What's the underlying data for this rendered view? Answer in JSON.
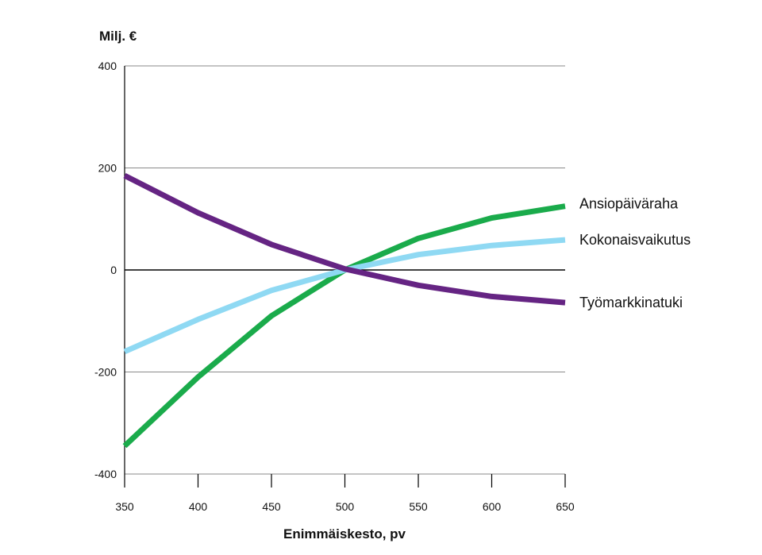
{
  "chart_data": {
    "type": "line",
    "ylabel": "Milj. €",
    "xlabel": "Enimmäiskesto, pv",
    "x": [
      350,
      400,
      450,
      500,
      550,
      600,
      650
    ],
    "xlim": [
      350,
      650
    ],
    "ylim": [
      -400,
      400
    ],
    "yticks": [
      400,
      200,
      0,
      -200,
      -400
    ],
    "ytick_labels": [
      "400",
      "200",
      "0",
      "-200",
      "-400"
    ],
    "xtick_labels": [
      "350",
      "400",
      "450",
      "500",
      "550",
      "600",
      "650"
    ],
    "grid": true,
    "legend": "right (inline labels at line ends)",
    "series": [
      {
        "name": "Ansiopäiväraha",
        "color": "#1aab4b",
        "values": [
          -345,
          -210,
          -90,
          0,
          62,
          102,
          125
        ]
      },
      {
        "name": "Kokonaisvaikutus",
        "color": "#8fd9f3",
        "values": [
          -160,
          -97,
          -40,
          0,
          30,
          48,
          59
        ]
      },
      {
        "name": "Työmarkkinatuki",
        "color": "#652483",
        "values": [
          185,
          112,
          50,
          2,
          -30,
          -52,
          -64
        ]
      }
    ]
  }
}
